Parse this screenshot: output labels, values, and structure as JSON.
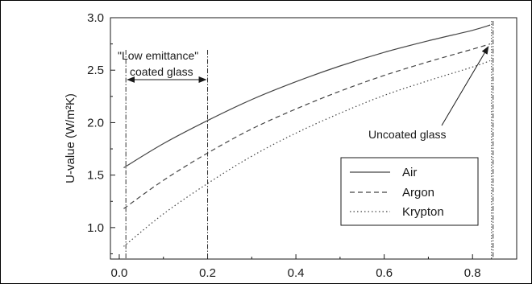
{
  "chart_data": {
    "type": "line",
    "xlabel": "",
    "ylabel": "U-value (W/m²K)",
    "xlim": [
      -0.02,
      0.9
    ],
    "ylim": [
      0.7,
      3.0
    ],
    "x_ticks": [
      "0.0",
      "0.2",
      "0.4",
      "0.6",
      "0.8"
    ],
    "y_ticks": [
      "1.0",
      "1.5",
      "2.0",
      "2.5",
      "3.0"
    ],
    "grid": false,
    "legend_position": "bottom-right",
    "series": [
      {
        "name": "Air",
        "style": "solid",
        "x": [
          0.01,
          0.1,
          0.2,
          0.3,
          0.4,
          0.5,
          0.6,
          0.7,
          0.8,
          0.84
        ],
        "y": [
          1.57,
          1.8,
          2.02,
          2.22,
          2.39,
          2.54,
          2.67,
          2.78,
          2.88,
          2.93
        ]
      },
      {
        "name": "Argon",
        "style": "dashed",
        "x": [
          0.01,
          0.1,
          0.2,
          0.3,
          0.4,
          0.5,
          0.6,
          0.7,
          0.8,
          0.84
        ],
        "y": [
          1.18,
          1.45,
          1.71,
          1.94,
          2.13,
          2.3,
          2.45,
          2.58,
          2.7,
          2.75
        ]
      },
      {
        "name": "Krypton",
        "style": "dotted",
        "x": [
          0.01,
          0.1,
          0.2,
          0.3,
          0.4,
          0.5,
          0.6,
          0.7,
          0.8,
          0.84
        ],
        "y": [
          0.82,
          1.13,
          1.42,
          1.68,
          1.9,
          2.09,
          2.26,
          2.4,
          2.53,
          2.59
        ]
      }
    ],
    "annotations": {
      "low_e_line1": "\"Low emittance\"",
      "low_e_line2": "coated glass",
      "low_e_range": [
        0.015,
        0.2
      ],
      "uncoated": "Uncoated glass",
      "uncoated_x": 0.843
    }
  }
}
